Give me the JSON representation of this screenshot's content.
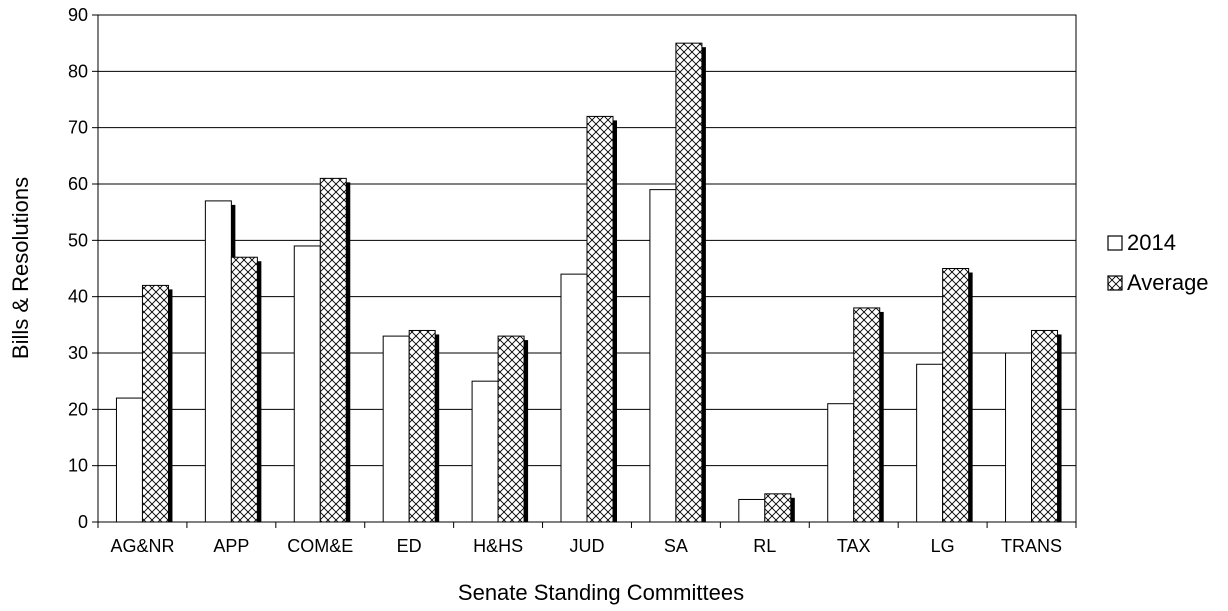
{
  "chart_data": {
    "type": "bar",
    "categories": [
      "AG&NR",
      "APP",
      "COM&E",
      "ED",
      "H&HS",
      "JUD",
      "SA",
      "RL",
      "TAX",
      "LG",
      "TRANS"
    ],
    "series": [
      {
        "name": "2014",
        "values": [
          22,
          57,
          49,
          33,
          25,
          44,
          59,
          4,
          21,
          28,
          30
        ],
        "fill": "#ffffff",
        "pattern": "solid"
      },
      {
        "name": "Average",
        "values": [
          42,
          47,
          61,
          34,
          33,
          72,
          85,
          5,
          38,
          45,
          34
        ],
        "fill": "#ffffff",
        "pattern": "crosshatch"
      }
    ],
    "xlabel": "Senate Standing Committees",
    "ylabel": "Bills & Resolutions",
    "ylim": [
      0,
      90
    ],
    "yticks": [
      0,
      10,
      20,
      30,
      40,
      50,
      60,
      70,
      80,
      90
    ],
    "grid": true,
    "legend_position": "right",
    "bar_shadow": true,
    "colors": {
      "bar_edge": "#000000",
      "shadow": "#000000",
      "grid": "#000000",
      "background": "#ffffff"
    }
  }
}
